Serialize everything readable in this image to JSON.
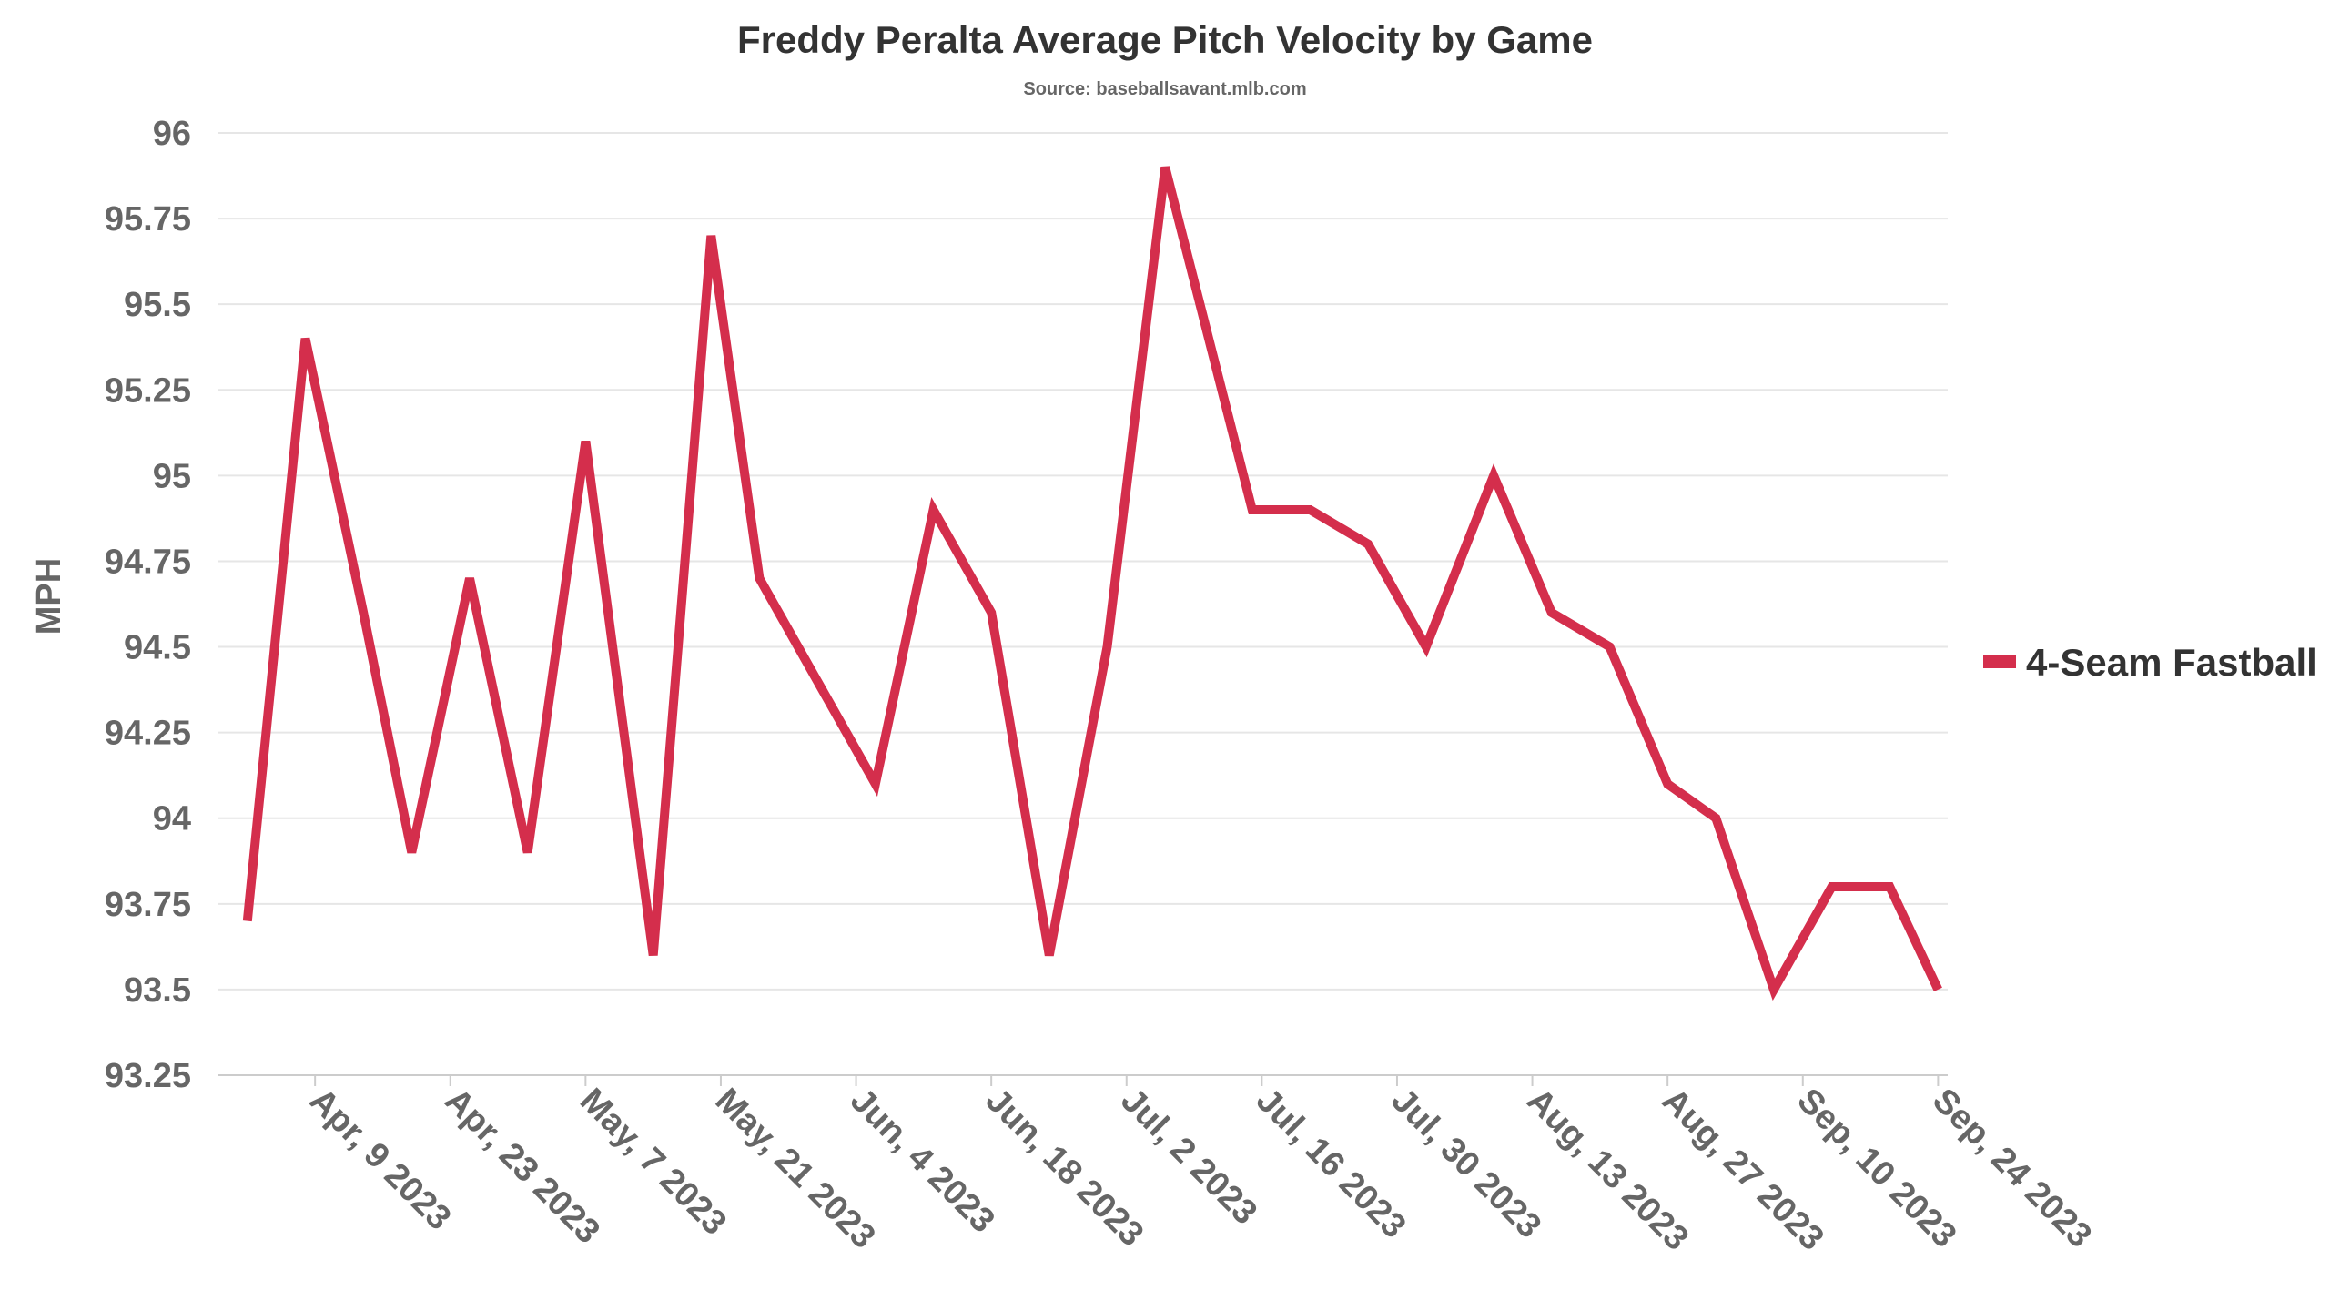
{
  "chart_data": {
    "type": "line",
    "title": "Freddy Peralta Average Pitch Velocity by Game",
    "subtitle": "Source: baseballsavant.mlb.com",
    "xlabel": "",
    "ylabel": "MPH",
    "ylim": [
      93.25,
      96
    ],
    "yticks": [
      "93.25",
      "93.5",
      "93.75",
      "94",
      "94.25",
      "94.5",
      "94.75",
      "95",
      "95.25",
      "95.5",
      "95.75",
      "96"
    ],
    "xlim": [
      "2023-03-30",
      "2023-09-25"
    ],
    "xticks": [
      {
        "date": "2023-04-09",
        "label": "Apr, 9 2023"
      },
      {
        "date": "2023-04-23",
        "label": "Apr, 23 2023"
      },
      {
        "date": "2023-05-07",
        "label": "May, 7 2023"
      },
      {
        "date": "2023-05-21",
        "label": "May, 21 2023"
      },
      {
        "date": "2023-06-04",
        "label": "Jun, 4 2023"
      },
      {
        "date": "2023-06-18",
        "label": "Jun, 18 2023"
      },
      {
        "date": "2023-07-02",
        "label": "Jul, 2 2023"
      },
      {
        "date": "2023-07-16",
        "label": "Jul, 16 2023"
      },
      {
        "date": "2023-07-30",
        "label": "Jul, 30 2023"
      },
      {
        "date": "2023-08-13",
        "label": "Aug, 13 2023"
      },
      {
        "date": "2023-08-27",
        "label": "Aug, 27 2023"
      },
      {
        "date": "2023-09-10",
        "label": "Sep, 10 2023"
      },
      {
        "date": "2023-09-24",
        "label": "Sep, 24 2023"
      }
    ],
    "grid": true,
    "legend_position": "right",
    "series": [
      {
        "name": "4-Seam Fastball",
        "color": "#d42e4c",
        "x": [
          "2023-04-02",
          "2023-04-08",
          "2023-04-14",
          "2023-04-19",
          "2023-04-25",
          "2023-05-01",
          "2023-05-07",
          "2023-05-14",
          "2023-05-20",
          "2023-05-25",
          "2023-05-31",
          "2023-06-06",
          "2023-06-12",
          "2023-06-18",
          "2023-06-24",
          "2023-06-30",
          "2023-07-06",
          "2023-07-15",
          "2023-07-21",
          "2023-07-27",
          "2023-08-02",
          "2023-08-09",
          "2023-08-15",
          "2023-08-21",
          "2023-08-27",
          "2023-09-01",
          "2023-09-07",
          "2023-09-13",
          "2023-09-19",
          "2023-09-24"
        ],
        "values": [
          93.7,
          95.4,
          94.6,
          93.9,
          94.7,
          93.9,
          95.1,
          93.6,
          95.7,
          94.7,
          94.4,
          94.1,
          94.9,
          94.6,
          93.6,
          94.5,
          95.9,
          94.9,
          94.9,
          94.8,
          94.5,
          95.0,
          94.6,
          94.5,
          94.1,
          94.0,
          93.5,
          93.8,
          93.8,
          93.5
        ]
      }
    ]
  }
}
